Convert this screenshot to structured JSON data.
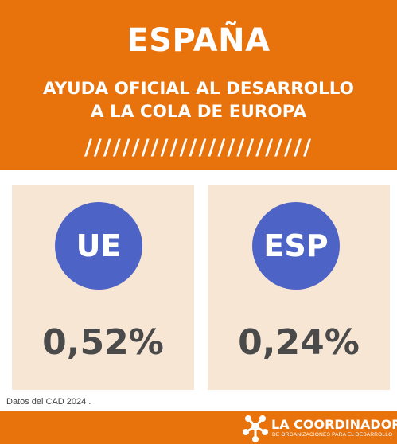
{
  "header": {
    "title": "ESPAÑA",
    "subtitle": "AYUDA OFICIAL AL DESARROLLO\nA LA COLA DE EUROPA",
    "separator": "////////////////////////"
  },
  "cards": [
    {
      "label": "UE",
      "value": "0,52%"
    },
    {
      "label": "ESP",
      "value": "0,24%"
    }
  ],
  "source_note": "Datos del CAD 2024 .",
  "footer": {
    "org_name": "LA COORDINADORA",
    "org_tagline": "DE ORGANIZACIONES PARA EL DESARROLLO"
  },
  "colors": {
    "brand_orange": "#E8720C",
    "card_background": "#F7E6D4",
    "badge_blue": "#4E63C6",
    "value_gray": "#4A4A4A"
  }
}
